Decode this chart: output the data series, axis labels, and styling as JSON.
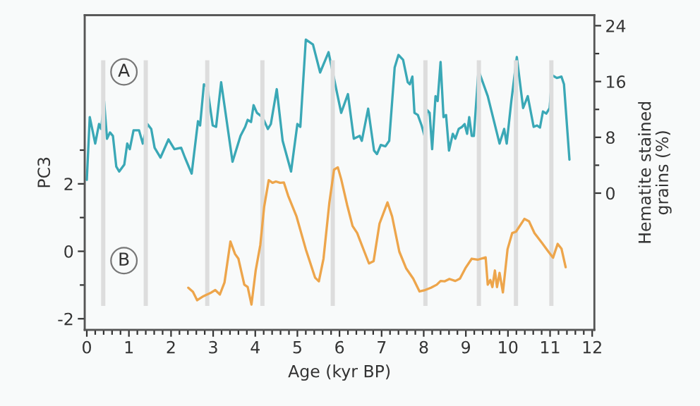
{
  "chart_data": {
    "type": "line",
    "xlabel": "Age (kyr BP)",
    "ylabel": "PC3",
    "y2label": "Hematite stained\ngrains (%)",
    "annotations": [
      "A",
      "B"
    ],
    "xlim": [
      -0.05,
      12.05
    ],
    "xticks": [
      0,
      1,
      2,
      3,
      4,
      5,
      6,
      7,
      8,
      9,
      10,
      11,
      12,
      {
        "value": 0.2,
        "label": null
      },
      {
        "value": 0.4,
        "label": null
      },
      {
        "value": 0.6,
        "label": null
      },
      {
        "value": 0.8,
        "label": null
      },
      {
        "value": 1.2,
        "label": null
      },
      {
        "value": 1.4,
        "label": null
      },
      {
        "value": 1.6,
        "label": null
      },
      {
        "value": 1.8,
        "label": null
      },
      {
        "value": 2.2,
        "label": null
      },
      {
        "value": 2.4,
        "label": null
      },
      {
        "value": 2.6,
        "label": null
      },
      {
        "value": 2.8,
        "label": null
      },
      {
        "value": 3.2,
        "label": null
      },
      {
        "value": 3.4,
        "label": null
      },
      {
        "value": 3.6,
        "label": null
      },
      {
        "value": 3.8,
        "label": null
      },
      {
        "value": 4.2,
        "label": null
      },
      {
        "value": 4.4,
        "label": null
      },
      {
        "value": 4.6,
        "label": null
      },
      {
        "value": 4.8,
        "label": null
      },
      {
        "value": 5.2,
        "label": null
      },
      {
        "value": 5.4,
        "label": null
      },
      {
        "value": 5.6,
        "label": null
      },
      {
        "value": 5.8,
        "label": null
      },
      {
        "value": 6.2,
        "label": null
      },
      {
        "value": 6.4,
        "label": null
      },
      {
        "value": 6.6,
        "label": null
      },
      {
        "value": 6.8,
        "label": null
      },
      {
        "value": 7.2,
        "label": null
      },
      {
        "value": 7.4,
        "label": null
      },
      {
        "value": 7.6,
        "label": null
      },
      {
        "value": 7.8,
        "label": null
      },
      {
        "value": 8.2,
        "label": null
      },
      {
        "value": 8.4,
        "label": null
      },
      {
        "value": 8.6,
        "label": null
      },
      {
        "value": 8.8,
        "label": null
      },
      {
        "value": 9.2,
        "label": null
      },
      {
        "value": 9.4,
        "label": null
      },
      {
        "value": 9.6,
        "label": null
      },
      {
        "value": 9.8,
        "label": null
      },
      {
        "value": 10.2,
        "label": null
      },
      {
        "value": 10.4,
        "label": null
      },
      {
        "value": 10.6,
        "label": null
      },
      {
        "value": 10.8,
        "label": null
      },
      {
        "value": 11.2,
        "label": null
      },
      {
        "value": 11.4,
        "label": null
      },
      {
        "value": 11.6,
        "label": null
      },
      {
        "value": 11.8,
        "label": null
      }
    ],
    "ylim": [
      -2.33,
      7.0
    ],
    "yticks": [
      -2,
      {
        "value": -1,
        "label": null
      },
      0,
      {
        "value": 1,
        "label": null
      },
      2,
      {
        "value": 3,
        "label": null
      }
    ],
    "y2lim": [
      -19.6,
      25.5
    ],
    "y2ticks": [
      0,
      {
        "value": 4,
        "label": null
      },
      8,
      {
        "value": 12,
        "label": null
      },
      16,
      {
        "value": 20,
        "label": null
      },
      24
    ],
    "grid": false,
    "legend": false,
    "bands": [
      {
        "axis": "x",
        "from": 0.34,
        "to": 0.44,
        "color": "#dddddd"
      },
      {
        "axis": "x",
        "from": 1.35,
        "to": 1.45,
        "color": "#dddddd"
      },
      {
        "axis": "x",
        "from": 2.81,
        "to": 2.91,
        "color": "#dddddd"
      },
      {
        "axis": "x",
        "from": 4.12,
        "to": 4.22,
        "color": "#dddddd"
      },
      {
        "axis": "x",
        "from": 5.79,
        "to": 5.89,
        "color": "#dddddd"
      },
      {
        "axis": "x",
        "from": 7.99,
        "to": 8.09,
        "color": "#dddddd"
      },
      {
        "axis": "x",
        "from": 9.26,
        "to": 9.36,
        "color": "#dddddd"
      },
      {
        "axis": "x",
        "from": 10.14,
        "to": 10.24,
        "color": "#dddddd"
      },
      {
        "axis": "x",
        "from": 10.98,
        "to": 11.08,
        "color": "#dddddd"
      }
    ],
    "series": [
      {
        "color": "#3aa8b6",
        "axis": "y2",
        "x": [
          0.0,
          0.07,
          0.2,
          0.29,
          0.34,
          0.41,
          0.48,
          0.55,
          0.62,
          0.7,
          0.77,
          0.89,
          0.96,
          1.02,
          1.11,
          1.24,
          1.33,
          1.44,
          1.53,
          1.61,
          1.75,
          1.94,
          2.08,
          2.24,
          2.33,
          2.49,
          2.64,
          2.69,
          2.78,
          2.86,
          2.99,
          3.07,
          3.19,
          3.46,
          3.65,
          3.76,
          3.82,
          3.9,
          3.96,
          4.04,
          4.17,
          4.3,
          4.37,
          4.51,
          4.65,
          4.85,
          5.0,
          5.07,
          5.2,
          5.37,
          5.54,
          5.74,
          6.04,
          6.2,
          6.34,
          6.48,
          6.53,
          6.68,
          6.82,
          6.89,
          6.98,
          7.09,
          7.18,
          7.31,
          7.4,
          7.51,
          7.62,
          7.67,
          7.73,
          7.78,
          7.86,
          7.95,
          8.02,
          8.08,
          8.14,
          8.2,
          8.28,
          8.33,
          8.4,
          8.47,
          8.53,
          8.6,
          8.69,
          8.75,
          8.83,
          8.91,
          8.97,
          9.03,
          9.08,
          9.14,
          9.19,
          9.3,
          9.52,
          9.8,
          9.91,
          9.97,
          10.08,
          10.21,
          10.36,
          10.47,
          10.61,
          10.69,
          10.76,
          10.83,
          10.91,
          10.99,
          11.05,
          11.16,
          11.22,
          11.27,
          11.33,
          11.46
        ],
        "values": [
          1.9,
          10.9,
          7.1,
          9.9,
          9.2,
          13.2,
          7.8,
          8.7,
          8.2,
          3.8,
          3.1,
          4.1,
          7.1,
          6.3,
          9.0,
          9.0,
          7.1,
          9.9,
          9.2,
          6.5,
          5.1,
          7.7,
          6.3,
          6.5,
          5.1,
          2.8,
          10.3,
          9.7,
          15.6,
          15.2,
          9.7,
          9.5,
          15.9,
          4.5,
          8.2,
          9.5,
          10.5,
          10.2,
          12.6,
          11.5,
          10.9,
          9.2,
          9.9,
          14.9,
          7.5,
          3.1,
          9.9,
          9.5,
          22.0,
          21.3,
          17.3,
          20.2,
          11.5,
          14.2,
          7.8,
          8.2,
          7.5,
          12.1,
          6.1,
          5.6,
          6.9,
          6.7,
          7.5,
          18.0,
          19.8,
          19.1,
          15.9,
          15.6,
          16.7,
          11.5,
          11.2,
          9.7,
          8.2,
          11.9,
          11.5,
          6.3,
          13.9,
          13.2,
          18.8,
          10.9,
          11.2,
          6.1,
          8.5,
          7.8,
          9.2,
          9.5,
          9.9,
          8.5,
          10.9,
          8.2,
          8.2,
          17.6,
          13.9,
          7.1,
          9.2,
          7.1,
          13.2,
          19.5,
          12.2,
          13.9,
          9.5,
          9.7,
          9.4,
          11.7,
          11.4,
          12.2,
          16.9,
          16.5,
          16.6,
          16.7,
          15.6,
          4.8
        ]
      },
      {
        "color": "#eda54b",
        "axis": "y",
        "x": [
          2.41,
          2.52,
          2.62,
          2.77,
          2.93,
          3.05,
          3.16,
          3.27,
          3.41,
          3.52,
          3.6,
          3.74,
          3.82,
          3.91,
          4.01,
          4.12,
          4.21,
          4.32,
          4.41,
          4.49,
          4.59,
          4.68,
          4.78,
          4.98,
          5.2,
          5.42,
          5.51,
          5.62,
          5.76,
          5.87,
          5.96,
          6.04,
          6.18,
          6.31,
          6.42,
          6.59,
          6.7,
          6.81,
          6.95,
          7.14,
          7.25,
          7.42,
          7.58,
          7.75,
          7.9,
          8.03,
          8.17,
          8.31,
          8.4,
          8.5,
          8.61,
          8.75,
          8.86,
          8.99,
          9.14,
          9.28,
          9.47,
          9.52,
          9.58,
          9.63,
          9.69,
          9.74,
          9.8,
          9.88,
          9.99,
          10.1,
          10.19,
          10.39,
          10.5,
          10.63,
          10.8,
          10.96,
          11.07,
          11.18,
          11.27,
          11.37
        ],
        "values": [
          -1.08,
          -1.2,
          -1.45,
          -1.33,
          -1.24,
          -1.15,
          -1.28,
          -0.92,
          0.29,
          -0.08,
          -0.22,
          -0.99,
          -1.06,
          -1.58,
          -0.57,
          0.19,
          1.31,
          2.11,
          2.03,
          2.07,
          2.03,
          2.04,
          1.65,
          1.03,
          0.06,
          -0.78,
          -0.89,
          -0.22,
          1.45,
          2.42,
          2.49,
          2.14,
          1.38,
          0.75,
          0.54,
          -0.01,
          -0.36,
          -0.29,
          0.82,
          1.45,
          1.03,
          -0.01,
          -0.5,
          -0.81,
          -1.19,
          -1.15,
          -1.08,
          -0.99,
          -0.88,
          -0.89,
          -0.82,
          -0.88,
          -0.81,
          -0.5,
          -0.22,
          -0.25,
          -0.18,
          -0.99,
          -0.85,
          -1.06,
          -0.57,
          -1.06,
          -0.64,
          -1.22,
          0.06,
          0.54,
          0.58,
          0.96,
          0.89,
          0.54,
          0.26,
          -0.01,
          -0.19,
          0.22,
          0.08,
          -0.47
        ]
      }
    ]
  }
}
